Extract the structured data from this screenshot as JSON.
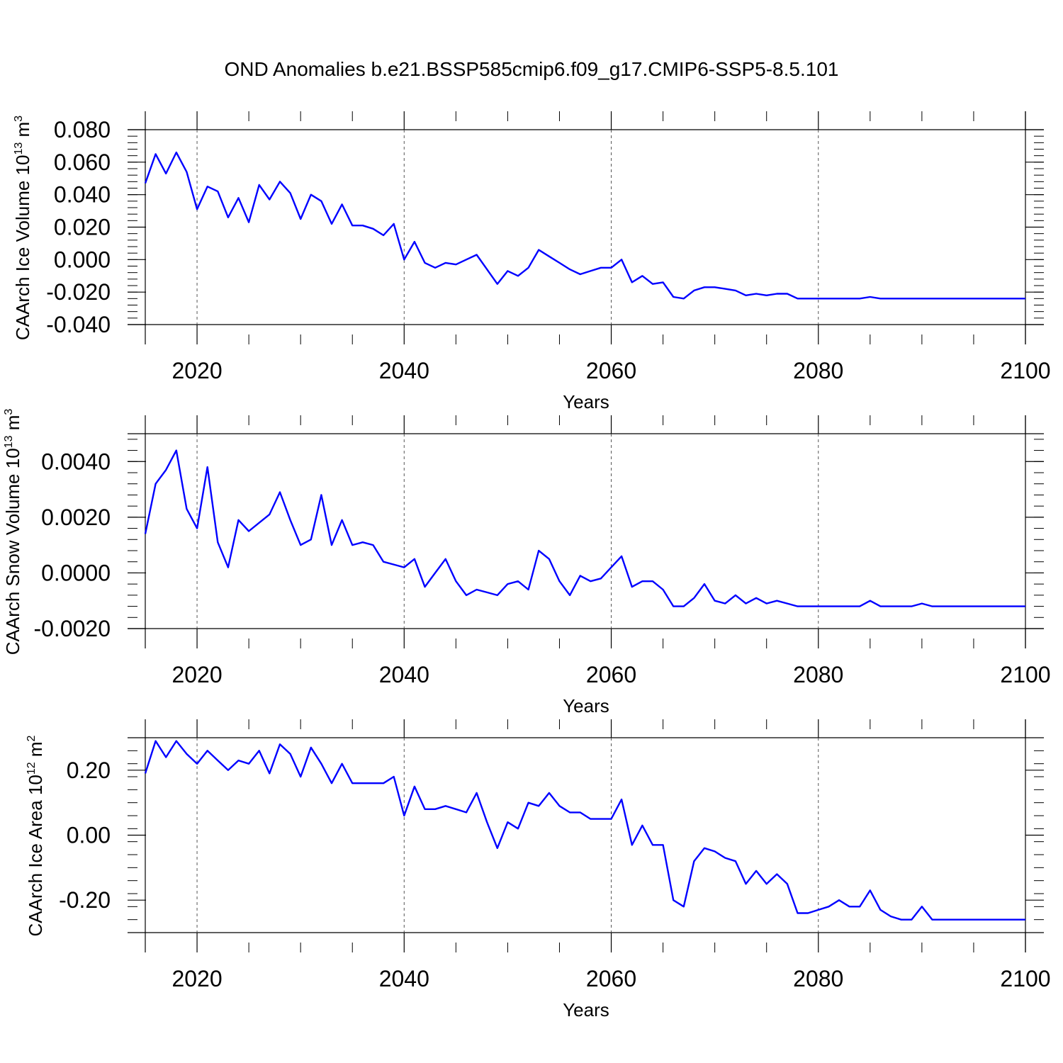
{
  "figure_title": "OND Anomalies b.e21.BSSP585cmip6.f09_g17.CMIP6-SSP5-8.5.101",
  "line_color": "#0000ff",
  "chart_data": [
    {
      "type": "line",
      "xlabel": "Years",
      "ylabel": "CAArch Ice Volume 10",
      "ylabel_sup1": "13",
      "ylabel_unit": " m",
      "ylabel_sup2": "3",
      "xlim": [
        2015,
        2100
      ],
      "ylim": [
        -0.04,
        0.08
      ],
      "x_ticks": [
        2020,
        2040,
        2060,
        2080,
        2100
      ],
      "x_tick_labels": [
        "2020",
        "2040",
        "2060",
        "2080",
        "2100"
      ],
      "y_ticks": [
        -0.04,
        -0.02,
        0.0,
        0.02,
        0.04,
        0.06,
        0.08
      ],
      "y_tick_labels": [
        "-0.040",
        "-0.020",
        "0.000",
        "0.020",
        "0.040",
        "0.060",
        "0.080"
      ],
      "grid": "vertical dashed at major x ticks",
      "x": [
        2015,
        2016,
        2017,
        2018,
        2019,
        2020,
        2021,
        2022,
        2023,
        2024,
        2025,
        2026,
        2027,
        2028,
        2029,
        2030,
        2031,
        2032,
        2033,
        2034,
        2035,
        2036,
        2037,
        2038,
        2039,
        2040,
        2041,
        2042,
        2043,
        2044,
        2045,
        2046,
        2047,
        2048,
        2049,
        2050,
        2051,
        2052,
        2053,
        2054,
        2055,
        2056,
        2057,
        2058,
        2059,
        2060,
        2061,
        2062,
        2063,
        2064,
        2065,
        2066,
        2067,
        2068,
        2069,
        2070,
        2071,
        2072,
        2073,
        2074,
        2075,
        2076,
        2077,
        2078,
        2079,
        2080,
        2081,
        2082,
        2083,
        2084,
        2085,
        2086,
        2087,
        2088,
        2089,
        2090,
        2091,
        2092,
        2093,
        2094,
        2095,
        2096,
        2097,
        2098,
        2099,
        2100
      ],
      "values": [
        0.047,
        0.065,
        0.053,
        0.066,
        0.054,
        0.031,
        0.045,
        0.042,
        0.026,
        0.038,
        0.023,
        0.046,
        0.037,
        0.048,
        0.041,
        0.025,
        0.04,
        0.036,
        0.022,
        0.034,
        0.021,
        0.021,
        0.019,
        0.015,
        0.022,
        0.0,
        0.011,
        -0.002,
        -0.005,
        -0.002,
        -0.003,
        0.0,
        0.003,
        -0.006,
        -0.015,
        -0.007,
        -0.01,
        -0.005,
        0.006,
        0.002,
        -0.002,
        -0.006,
        -0.009,
        -0.007,
        -0.005,
        -0.005,
        0.0,
        -0.014,
        -0.01,
        -0.015,
        -0.014,
        -0.023,
        -0.024,
        -0.019,
        -0.017,
        -0.017,
        -0.018,
        -0.019,
        -0.022,
        -0.021,
        -0.022,
        -0.021,
        -0.021,
        -0.024,
        -0.024,
        -0.024,
        -0.024,
        -0.024,
        -0.024,
        -0.024,
        -0.023,
        -0.024,
        -0.024,
        -0.024,
        -0.024,
        -0.024,
        -0.024,
        -0.024,
        -0.024,
        -0.024,
        -0.024,
        -0.024,
        -0.024,
        -0.024,
        -0.024,
        -0.024
      ]
    },
    {
      "type": "line",
      "xlabel": "Years",
      "ylabel": "CAArch Snow Volume 10",
      "ylabel_sup1": "13",
      "ylabel_unit": " m",
      "ylabel_sup2": "3",
      "xlim": [
        2015,
        2100
      ],
      "ylim": [
        -0.002,
        0.005
      ],
      "x_ticks": [
        2020,
        2040,
        2060,
        2080,
        2100
      ],
      "x_tick_labels": [
        "2020",
        "2040",
        "2060",
        "2080",
        "2100"
      ],
      "y_ticks": [
        -0.002,
        0.0,
        0.002,
        0.004
      ],
      "y_tick_labels": [
        "-0.0020",
        "0.0000",
        "0.0020",
        "0.0040"
      ],
      "grid": "vertical dashed at major x ticks",
      "x": [
        2015,
        2016,
        2017,
        2018,
        2019,
        2020,
        2021,
        2022,
        2023,
        2024,
        2025,
        2026,
        2027,
        2028,
        2029,
        2030,
        2031,
        2032,
        2033,
        2034,
        2035,
        2036,
        2037,
        2038,
        2039,
        2040,
        2041,
        2042,
        2043,
        2044,
        2045,
        2046,
        2047,
        2048,
        2049,
        2050,
        2051,
        2052,
        2053,
        2054,
        2055,
        2056,
        2057,
        2058,
        2059,
        2060,
        2061,
        2062,
        2063,
        2064,
        2065,
        2066,
        2067,
        2068,
        2069,
        2070,
        2071,
        2072,
        2073,
        2074,
        2075,
        2076,
        2077,
        2078,
        2079,
        2080,
        2081,
        2082,
        2083,
        2084,
        2085,
        2086,
        2087,
        2088,
        2089,
        2090,
        2091,
        2092,
        2093,
        2094,
        2095,
        2096,
        2097,
        2098,
        2099,
        2100
      ],
      "values": [
        0.0014,
        0.0032,
        0.0037,
        0.0044,
        0.0023,
        0.0016,
        0.0038,
        0.0011,
        0.0002,
        0.0019,
        0.0015,
        0.0018,
        0.0021,
        0.0029,
        0.0019,
        0.001,
        0.0012,
        0.0028,
        0.001,
        0.0019,
        0.001,
        0.0011,
        0.001,
        0.0004,
        0.0003,
        0.0002,
        0.0005,
        -0.0005,
        0.0,
        0.0005,
        -0.0003,
        -0.0008,
        -0.0006,
        -0.0007,
        -0.0008,
        -0.0004,
        -0.0003,
        -0.0006,
        0.0008,
        0.0005,
        -0.0003,
        -0.0008,
        -0.0001,
        -0.0003,
        -0.0002,
        0.0002,
        0.0006,
        -0.0005,
        -0.0003,
        -0.0003,
        -0.0006,
        -0.0012,
        -0.0012,
        -0.0009,
        -0.0004,
        -0.001,
        -0.0011,
        -0.0008,
        -0.0011,
        -0.0009,
        -0.0011,
        -0.001,
        -0.0011,
        -0.0012,
        -0.0012,
        -0.0012,
        -0.0012,
        -0.0012,
        -0.0012,
        -0.0012,
        -0.001,
        -0.0012,
        -0.0012,
        -0.0012,
        -0.0012,
        -0.0011,
        -0.0012,
        -0.0012,
        -0.0012,
        -0.0012,
        -0.0012,
        -0.0012,
        -0.0012,
        -0.0012,
        -0.0012,
        -0.0012
      ]
    },
    {
      "type": "line",
      "xlabel": "Years",
      "ylabel": "CAArch Ice Area 10",
      "ylabel_sup1": "12",
      "ylabel_unit": " m",
      "ylabel_sup2": "2",
      "xlim": [
        2015,
        2100
      ],
      "ylim": [
        -0.3,
        0.3
      ],
      "x_ticks": [
        2020,
        2040,
        2060,
        2080,
        2100
      ],
      "x_tick_labels": [
        "2020",
        "2040",
        "2060",
        "2080",
        "2100"
      ],
      "y_ticks": [
        -0.2,
        0.0,
        0.2
      ],
      "y_tick_labels": [
        "-0.20",
        "0.00",
        "0.20"
      ],
      "grid": "vertical dashed at major x ticks",
      "x": [
        2015,
        2016,
        2017,
        2018,
        2019,
        2020,
        2021,
        2022,
        2023,
        2024,
        2025,
        2026,
        2027,
        2028,
        2029,
        2030,
        2031,
        2032,
        2033,
        2034,
        2035,
        2036,
        2037,
        2038,
        2039,
        2040,
        2041,
        2042,
        2043,
        2044,
        2045,
        2046,
        2047,
        2048,
        2049,
        2050,
        2051,
        2052,
        2053,
        2054,
        2055,
        2056,
        2057,
        2058,
        2059,
        2060,
        2061,
        2062,
        2063,
        2064,
        2065,
        2066,
        2067,
        2068,
        2069,
        2070,
        2071,
        2072,
        2073,
        2074,
        2075,
        2076,
        2077,
        2078,
        2079,
        2080,
        2081,
        2082,
        2083,
        2084,
        2085,
        2086,
        2087,
        2088,
        2089,
        2090,
        2091,
        2092,
        2093,
        2094,
        2095,
        2096,
        2097,
        2098,
        2099,
        2100
      ],
      "values": [
        0.19,
        0.29,
        0.24,
        0.29,
        0.25,
        0.22,
        0.26,
        0.23,
        0.2,
        0.23,
        0.22,
        0.26,
        0.19,
        0.28,
        0.25,
        0.18,
        0.27,
        0.22,
        0.16,
        0.22,
        0.16,
        0.16,
        0.16,
        0.16,
        0.18,
        0.06,
        0.15,
        0.08,
        0.08,
        0.09,
        0.08,
        0.07,
        0.13,
        0.04,
        -0.04,
        0.04,
        0.02,
        0.1,
        0.09,
        0.13,
        0.09,
        0.07,
        0.07,
        0.05,
        0.05,
        0.05,
        0.11,
        -0.03,
        0.03,
        -0.03,
        -0.03,
        -0.2,
        -0.22,
        -0.08,
        -0.04,
        -0.05,
        -0.07,
        -0.08,
        -0.15,
        -0.11,
        -0.15,
        -0.12,
        -0.15,
        -0.24,
        -0.24,
        -0.23,
        -0.22,
        -0.2,
        -0.22,
        -0.22,
        -0.17,
        -0.23,
        -0.25,
        -0.26,
        -0.26,
        -0.22,
        -0.26,
        -0.26,
        -0.26,
        -0.26,
        -0.26,
        -0.26,
        -0.26,
        -0.26,
        -0.26,
        -0.26
      ]
    }
  ]
}
